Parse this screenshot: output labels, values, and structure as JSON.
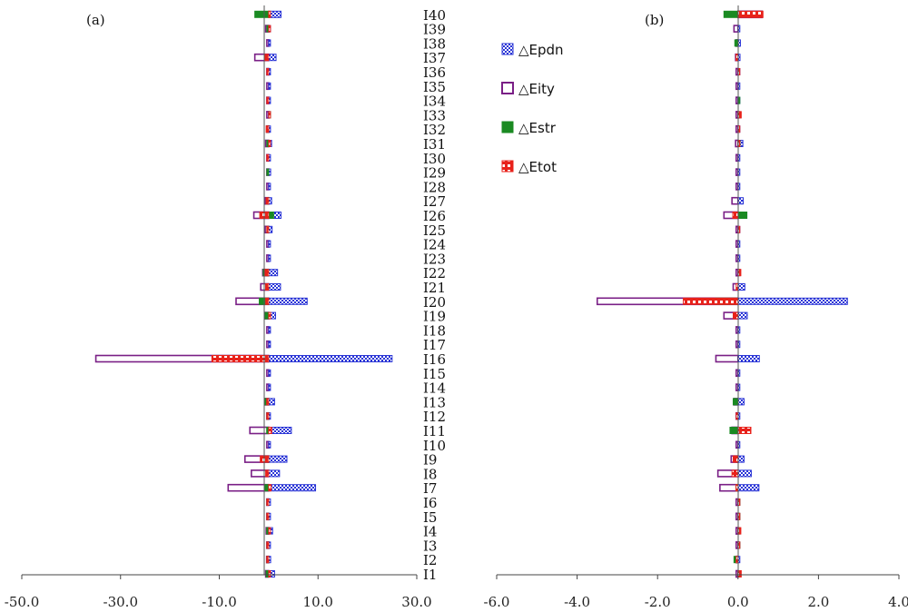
{
  "chart_data": [
    {
      "panel": "(a)",
      "type": "bar",
      "orientation": "horizontal",
      "xlim": [
        -50,
        30
      ],
      "xticks": [
        -50,
        -30,
        -10,
        10,
        30
      ],
      "xtick_labels": [
        "-50.0",
        "-30.0",
        "-10.0",
        "10.0",
        "30.0"
      ],
      "categories": [
        "I1",
        "I2",
        "I3",
        "I4",
        "I5",
        "I6",
        "I7",
        "I8",
        "I9",
        "I10",
        "I11",
        "I12",
        "I13",
        "I14",
        "I15",
        "I16",
        "I17",
        "I18",
        "I19",
        "I20",
        "I21",
        "I22",
        "I23",
        "I24",
        "I25",
        "I26",
        "I27",
        "I28",
        "I29",
        "I30",
        "I31",
        "I32",
        "I33",
        "I34",
        "I35",
        "I36",
        "I37",
        "I38",
        "I39",
        "I40"
      ],
      "series": [
        {
          "name": "△Epdn",
          "values": [
            1.2,
            0.4,
            0.1,
            0.8,
            0.1,
            0.1,
            9.5,
            2.2,
            3.7,
            0.1,
            4.6,
            0.1,
            1.2,
            0.3,
            0.1,
            25.0,
            0.1,
            0.1,
            1.4,
            7.8,
            2.4,
            1.8,
            0.1,
            0.1,
            0.7,
            2.5,
            0.6,
            0.1,
            0.4,
            0.1,
            0.6,
            0.1,
            0.2,
            0.1,
            0.1,
            0.1,
            1.5,
            0.1,
            0.1,
            2.5
          ]
        },
        {
          "name": "△Eity",
          "values": [
            -0.6,
            -0.4,
            -0.2,
            -0.5,
            -0.1,
            -0.3,
            -8.2,
            -3.5,
            -4.8,
            -0.1,
            -3.8,
            -0.1,
            -0.8,
            -0.3,
            -0.1,
            -35.0,
            -0.1,
            -0.1,
            -0.7,
            -6.6,
            -1.6,
            -1.2,
            -0.1,
            -0.1,
            -0.7,
            -3.0,
            -0.7,
            -0.1,
            -0.3,
            -0.1,
            -0.6,
            -0.4,
            -0.1,
            -0.1,
            -0.1,
            -0.1,
            -2.8,
            -0.1,
            -0.6,
            0
          ]
        },
        {
          "name": "△Estr",
          "values": [
            -0.5,
            -0.3,
            -0.1,
            -0.4,
            -0.1,
            -0.2,
            -0.8,
            0,
            -0.9,
            0,
            -0.4,
            -0.1,
            -0.8,
            0,
            0,
            -1.2,
            0,
            0,
            -0.7,
            -1.9,
            -0.6,
            -1.1,
            0,
            0,
            -0.3,
            1.0,
            -0.1,
            0,
            -0.1,
            0,
            -0.1,
            -0.2,
            0.1,
            0,
            0,
            0,
            0,
            0,
            -0.2,
            -2.8
          ]
        },
        {
          "name": "△Etot",
          "values": [
            0.1,
            -0.3,
            -0.2,
            0.3,
            -0.1,
            -0.2,
            0.5,
            -0.6,
            -1.7,
            0,
            0.6,
            -0.2,
            -0.4,
            0,
            0,
            -11.5,
            0,
            0,
            0.4,
            -0.6,
            -0.6,
            -0.8,
            0,
            0,
            -0.3,
            -1.8,
            -0.5,
            0,
            0,
            -0.2,
            0.1,
            -0.5,
            0.2,
            -0.2,
            0,
            -0.1,
            -0.8,
            0,
            0.2,
            0.3
          ]
        }
      ]
    },
    {
      "panel": "(b)",
      "type": "bar",
      "orientation": "horizontal",
      "xlim": [
        -6,
        4
      ],
      "xticks": [
        -6,
        -4,
        -2,
        0,
        2,
        4
      ],
      "xtick_labels": [
        "-6.0",
        "-4.0",
        "-2.0",
        "0.0",
        "2.0",
        "4.0"
      ],
      "categories": [
        "I1",
        "I2",
        "I3",
        "I4",
        "I5",
        "I6",
        "I7",
        "I8",
        "I9",
        "I10",
        "I11",
        "I12",
        "I13",
        "I14",
        "I15",
        "I16",
        "I17",
        "I18",
        "I19",
        "I20",
        "I21",
        "I22",
        "I23",
        "I24",
        "I25",
        "I26",
        "I27",
        "I28",
        "I29",
        "I30",
        "I31",
        "I32",
        "I33",
        "I34",
        "I35",
        "I36",
        "I37",
        "I38",
        "I39",
        "I40"
      ],
      "series": [
        {
          "name": "△Epdn",
          "values": [
            0.05,
            0.03,
            0.02,
            0.05,
            0.02,
            0.02,
            0.52,
            0.33,
            0.15,
            0.01,
            0.22,
            0.01,
            0.15,
            0.03,
            0.01,
            0.53,
            0.01,
            0.01,
            0.23,
            2.72,
            0.17,
            0.05,
            0.01,
            0.01,
            0.04,
            0.22,
            0.13,
            0.01,
            0.03,
            0.01,
            0.12,
            0.04,
            0.05,
            0.02,
            0.01,
            0.01,
            0.05,
            0.06,
            0.04,
            0.22
          ]
        },
        {
          "name": "△Eity",
          "values": [
            -0.03,
            -0.02,
            -0.02,
            -0.03,
            -0.02,
            -0.02,
            -0.45,
            -0.5,
            -0.17,
            -0.01,
            -0.15,
            -0.02,
            -0.1,
            -0.02,
            -0.01,
            -0.55,
            -0.01,
            -0.01,
            -0.35,
            -3.5,
            -0.12,
            -0.04,
            -0.01,
            -0.01,
            -0.04,
            -0.35,
            -0.15,
            -0.01,
            -0.02,
            -0.01,
            -0.06,
            -0.03,
            -0.02,
            -0.02,
            -0.01,
            -0.01,
            -0.06,
            -0.03,
            -0.1,
            0.6
          ]
        },
        {
          "name": "△Estr",
          "values": [
            0.02,
            -0.1,
            0.01,
            0.02,
            0.01,
            0.01,
            -0.05,
            0,
            -0.03,
            0,
            -0.2,
            0,
            -0.12,
            0,
            0,
            0,
            0,
            0,
            0,
            -0.55,
            0,
            0,
            0,
            0,
            0,
            0.22,
            0,
            0,
            0,
            0,
            0.05,
            0,
            0.02,
            0.03,
            0,
            0,
            0,
            -0.08,
            0,
            -0.35
          ]
        },
        {
          "name": "△Etot",
          "values": [
            0.08,
            -0.03,
            0.01,
            0.07,
            0.01,
            0.01,
            -0.05,
            -0.15,
            -0.12,
            0,
            0.32,
            -0.01,
            0,
            0,
            0,
            0,
            0,
            0,
            -0.12,
            -1.36,
            -0.02,
            0.07,
            0,
            0,
            0.03,
            -0.13,
            0,
            0,
            0,
            0,
            0.01,
            0.01,
            0.08,
            0,
            0,
            0.02,
            -0.05,
            0,
            0,
            0.62
          ]
        }
      ]
    }
  ],
  "legend": {
    "position": "top-left of panel (b)",
    "entries": [
      "△Epdn",
      "△Eity",
      "△Estr",
      "△Etot"
    ]
  },
  "colors": {
    "Epdn": "#2a35d6",
    "Eity": "#7a1f86",
    "Estr": "#1a8a22",
    "Etot": "#e8221b",
    "axis": "#444444"
  }
}
